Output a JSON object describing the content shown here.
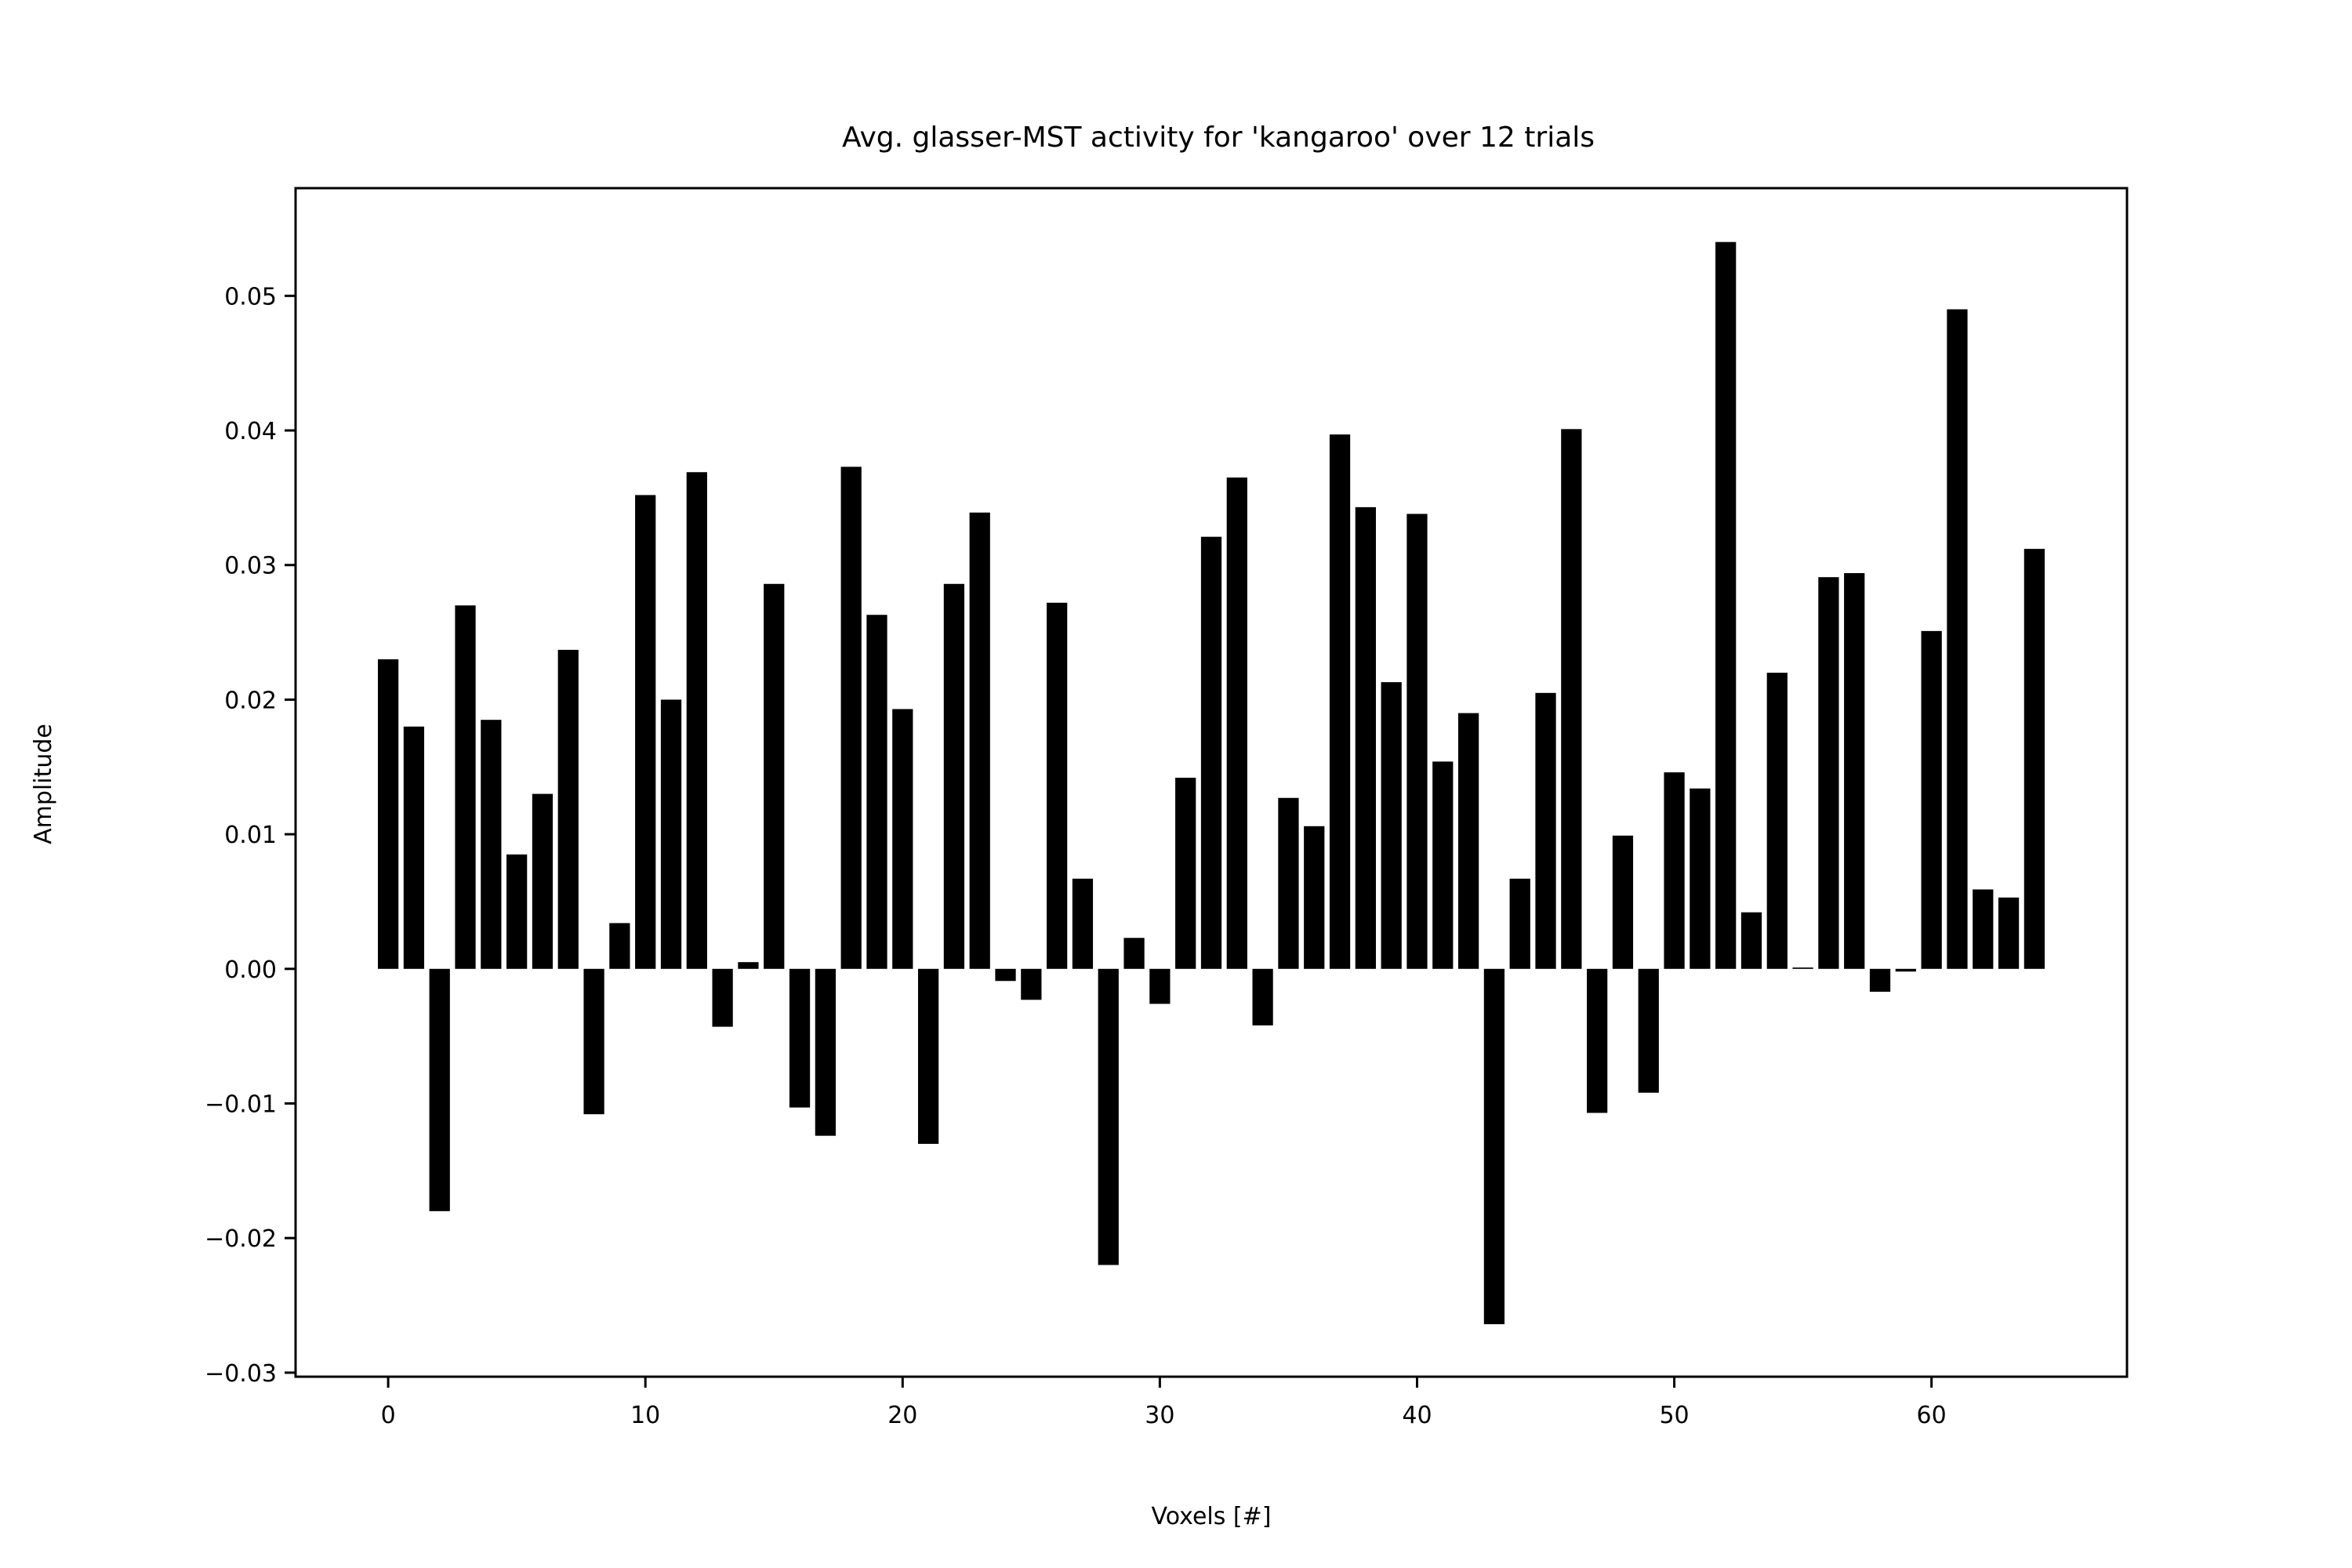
{
  "chart_data": {
    "type": "bar",
    "title": "Avg. glasser-MST activity for 'kangaroo' over 12 trials",
    "xlabel": "Voxels [#]",
    "ylabel": "Amplitude",
    "xlim": [
      -3.6,
      67.6
    ],
    "ylim": [
      -0.0303,
      0.058
    ],
    "xticks": [
      0,
      10,
      20,
      30,
      40,
      50,
      60
    ],
    "xtick_labels": [
      "0",
      "10",
      "20",
      "30",
      "40",
      "50",
      "60"
    ],
    "yticks": [
      -0.03,
      -0.02,
      -0.01,
      0.0,
      0.01,
      0.02,
      0.03,
      0.04,
      0.05
    ],
    "ytick_labels": [
      "−0.03",
      "−0.02",
      "−0.01",
      "0.00",
      "0.01",
      "0.02",
      "0.03",
      "0.04",
      "0.05"
    ],
    "grid": false,
    "bar_color": "#000000",
    "bar_width": 0.8,
    "x": [
      0,
      1,
      2,
      3,
      4,
      5,
      6,
      7,
      8,
      9,
      10,
      11,
      12,
      13,
      14,
      15,
      16,
      17,
      18,
      19,
      20,
      21,
      22,
      23,
      24,
      25,
      26,
      27,
      28,
      29,
      30,
      31,
      32,
      33,
      34,
      35,
      36,
      37,
      38,
      39,
      40,
      41,
      42,
      43,
      44,
      45,
      46,
      47,
      48,
      49,
      50,
      51,
      52,
      53,
      54,
      55,
      56,
      57,
      58,
      59,
      60,
      61,
      62,
      63,
      64
    ],
    "values": [
      0.023,
      0.018,
      -0.018,
      0.027,
      0.0185,
      0.0085,
      0.013,
      0.0237,
      -0.0108,
      0.0034,
      0.0352,
      0.02,
      0.0369,
      -0.0043,
      0.0005,
      0.0286,
      -0.0103,
      -0.0124,
      0.0373,
      0.0263,
      0.0193,
      -0.013,
      0.0286,
      0.0339,
      -0.0009,
      -0.0023,
      0.0272,
      0.0067,
      -0.022,
      0.0023,
      -0.0026,
      0.0142,
      0.0321,
      0.0365,
      -0.0042,
      0.0127,
      0.0106,
      0.0397,
      0.0343,
      0.0213,
      0.0338,
      0.0154,
      0.019,
      -0.0264,
      0.0067,
      0.0205,
      0.0401,
      -0.0107,
      0.0099,
      -0.0092,
      0.0146,
      0.0134,
      0.054,
      0.0042,
      0.022,
      0.0001,
      0.0291,
      0.0294,
      -0.0017,
      -0.0002,
      0.0251,
      0.049,
      0.0059,
      0.0053,
      0.0312
    ]
  }
}
